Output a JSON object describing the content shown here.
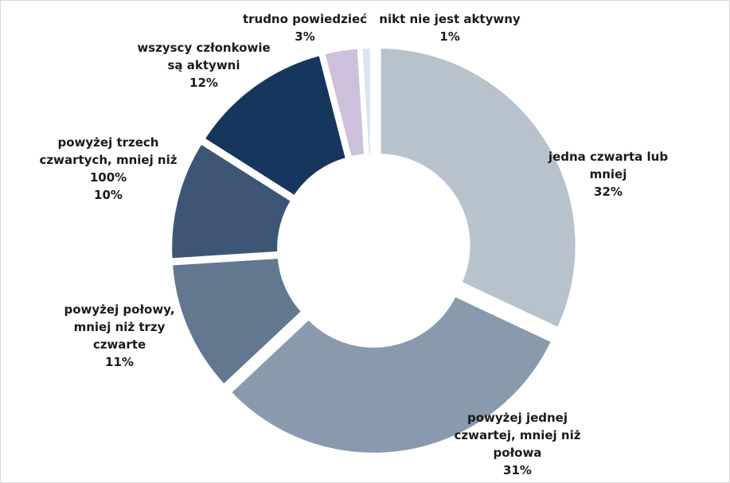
{
  "chart_data": {
    "type": "pie",
    "style": "donut",
    "title": "",
    "slices": [
      {
        "label_lines": [
          "jedna czwarta lub",
          "mniej"
        ],
        "value_label": "32%",
        "value": 32,
        "color": "#b8c2cd"
      },
      {
        "label_lines": [
          "powyżej jednej",
          "czwartej, mniej niż",
          "połowa"
        ],
        "value_label": "31%",
        "value": 31,
        "color": "#8a9aae"
      },
      {
        "label_lines": [
          "powyżej połowy,",
          "mniej niż trzy",
          "czwarte"
        ],
        "value_label": "11%",
        "value": 11,
        "color": "#62788f"
      },
      {
        "label_lines": [
          "powyżej trzech",
          "czwartych, mniej niż",
          "100%"
        ],
        "value_label": "10%",
        "value": 10,
        "color": "#3e5676"
      },
      {
        "label_lines": [
          "wszyscy członkowie",
          "są aktywni"
        ],
        "value_label": "12%",
        "value": 12,
        "color": "#17365d"
      },
      {
        "label_lines": [
          "trudno powiedzieć"
        ],
        "value_label": "3%",
        "value": 3,
        "color": "#ccc0da"
      },
      {
        "label_lines": [
          "nikt nie jest aktywny"
        ],
        "value_label": "1%",
        "value": 1,
        "color": "#dde4ee"
      }
    ]
  }
}
